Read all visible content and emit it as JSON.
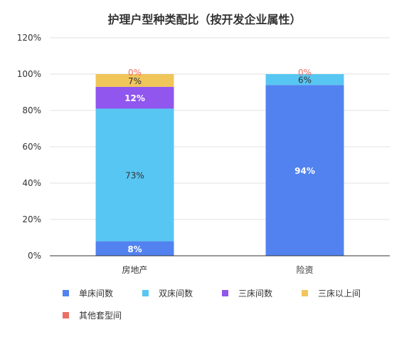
{
  "chart_data": {
    "type": "bar",
    "stacked": true,
    "title": "护理户型种类配比（按开发企业属性）",
    "categories": [
      "房地产",
      "险资"
    ],
    "ylim": [
      0,
      120
    ],
    "yticks": [
      "0%",
      "20%",
      "40%",
      "60%",
      "80%",
      "100%",
      "120%"
    ],
    "grid": true,
    "legend_position": "bottom",
    "series": [
      {
        "name": "单床间数",
        "color": "#5282f0",
        "values": [
          8,
          94
        ],
        "labels": [
          "8%",
          "94%"
        ],
        "label_color": "#ffffff"
      },
      {
        "name": "双床间数",
        "color": "#57c6f2",
        "values": [
          73,
          6
        ],
        "labels": [
          "73%",
          "6%"
        ],
        "label_color": "#333333"
      },
      {
        "name": "三床间数",
        "color": "#9056ee",
        "values": [
          12,
          0
        ],
        "labels": [
          "12%",
          ""
        ],
        "label_color": "#ffffff"
      },
      {
        "name": "三床以上间",
        "color": "#f0c55a",
        "values": [
          7,
          0
        ],
        "labels": [
          "7%",
          ""
        ],
        "label_color": "#333333"
      },
      {
        "name": "其他套型间",
        "color": "#ec6f66",
        "values": [
          0,
          0
        ],
        "labels": [
          "0%",
          "0%"
        ],
        "label_color": "#ec6f66"
      }
    ]
  }
}
